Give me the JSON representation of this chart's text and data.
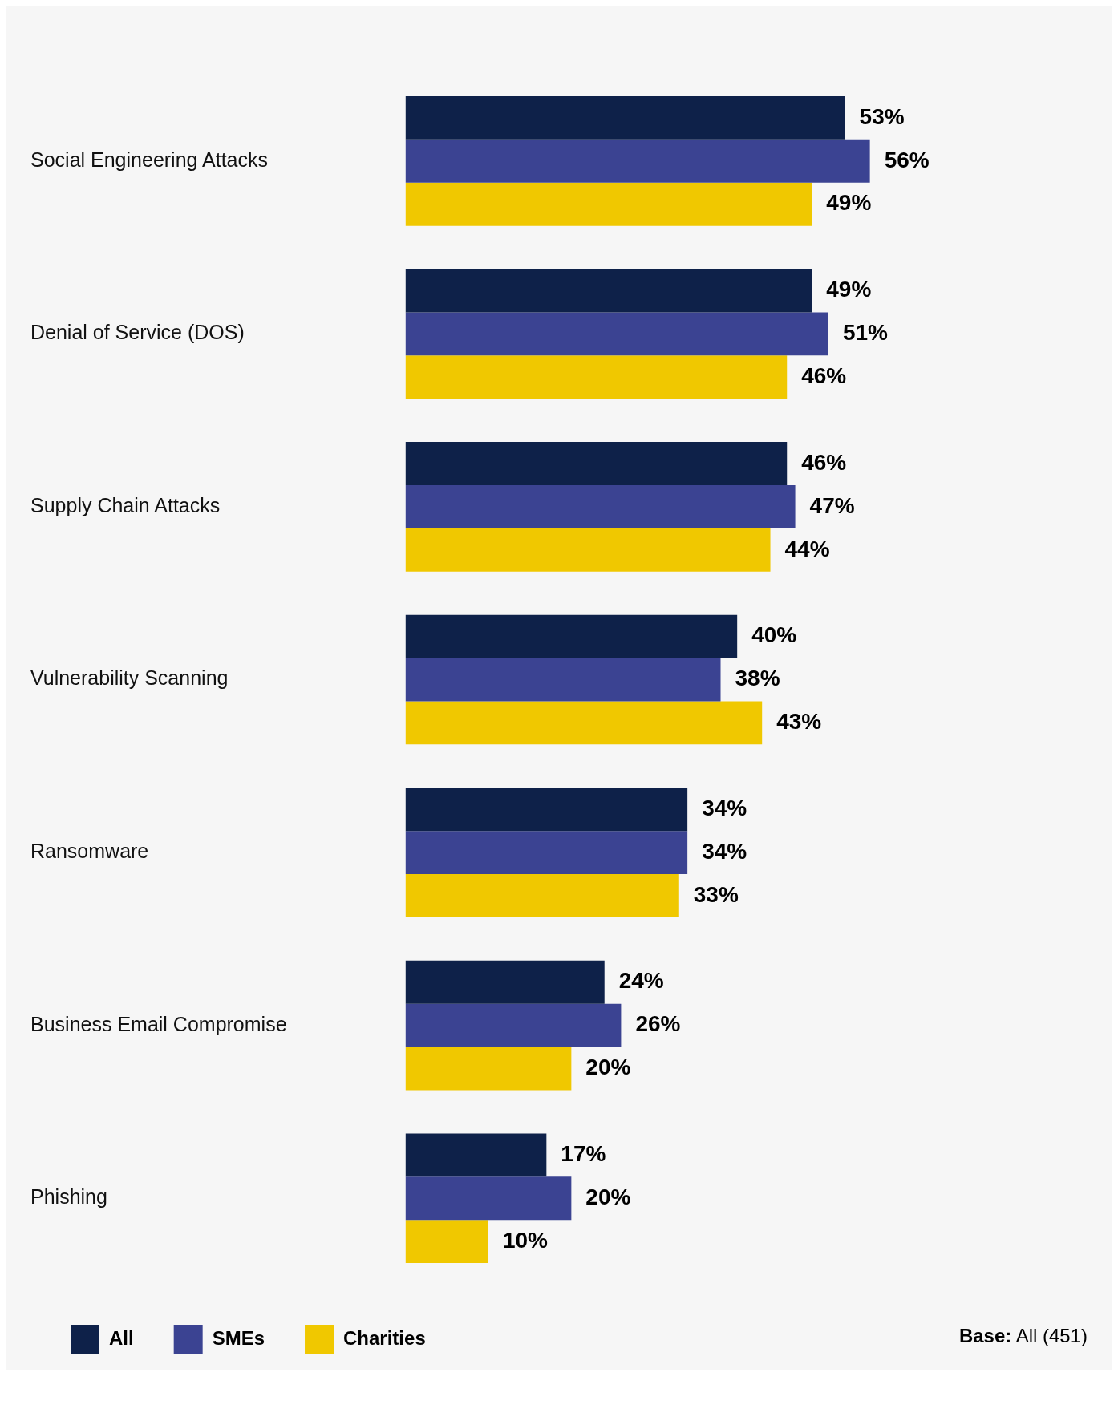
{
  "chart_data": {
    "type": "bar",
    "orientation": "horizontal",
    "categories": [
      "Social Engineering Attacks",
      "Denial of Service (DOS)",
      "Supply Chain Attacks",
      "Vulnerability Scanning",
      "Ransomware",
      "Business Email Compromise",
      "Phishing"
    ],
    "series": [
      {
        "name": "All",
        "color": "#0e2149",
        "values": [
          53,
          49,
          46,
          40,
          34,
          24,
          17
        ],
        "value_labels": [
          "53%",
          "49%",
          "46%",
          "40%",
          "34%",
          "24%",
          "17%"
        ]
      },
      {
        "name": "SMEs",
        "color": "#3b4392",
        "values": [
          56,
          51,
          47,
          38,
          34,
          26,
          20
        ],
        "value_labels": [
          "56%",
          "51%",
          "47%",
          "38%",
          "34%",
          "26%",
          "20%"
        ]
      },
      {
        "name": "Charities",
        "color": "#f0c800",
        "values": [
          49,
          46,
          44,
          43,
          33,
          20,
          10
        ],
        "value_labels": [
          "49%",
          "46%",
          "44%",
          "43%",
          "33%",
          "20%",
          "10%"
        ]
      }
    ],
    "legend": "bottom left",
    "grid": false,
    "tick_labels": "y",
    "annotations": [
      "Base: All (451)"
    ]
  }
}
